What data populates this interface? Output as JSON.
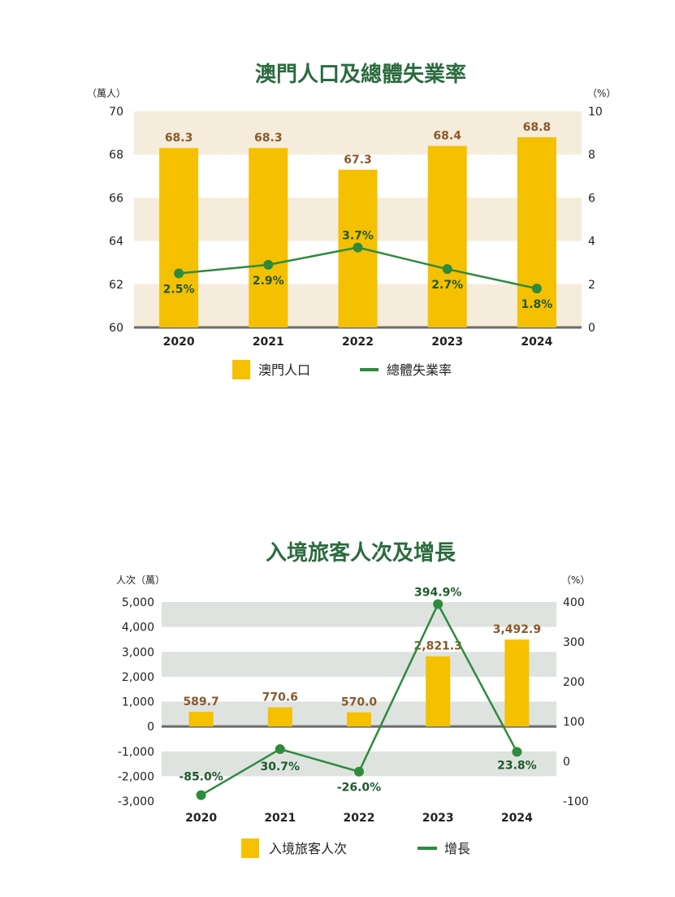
{
  "colors": {
    "bar": "#f5c000",
    "line": "#2e8b3e",
    "title": "#2b6b3f",
    "bar_label": "#8a5a2b",
    "point_label": "#1e5a2e",
    "band1": "#f5ecdb",
    "band2": "#dfe3df",
    "axis": "#6b6b6b"
  },
  "chart_data": [
    {
      "type": "bar",
      "title": "澳門人口及總體失業率",
      "left_unit": "（萬人）",
      "right_unit": "（%）",
      "categories": [
        "2020",
        "2021",
        "2022",
        "2023",
        "2024"
      ],
      "ylim": [
        60,
        70
      ],
      "yticks": [
        "60",
        "62",
        "64",
        "66",
        "68",
        "70"
      ],
      "y2lim": [
        0,
        10
      ],
      "y2ticks": [
        "0",
        "2",
        "4",
        "6",
        "8",
        "10"
      ],
      "series": [
        {
          "name": "澳門人口",
          "type": "bar",
          "axis": "left",
          "values": [
            68.3,
            68.3,
            67.3,
            68.4,
            68.8
          ],
          "labels": [
            "68.3",
            "68.3",
            "67.3",
            "68.4",
            "68.8"
          ]
        },
        {
          "name": "總體失業率",
          "type": "line",
          "axis": "right",
          "values": [
            2.5,
            2.9,
            3.7,
            2.7,
            1.8
          ],
          "labels": [
            "2.5%",
            "2.9%",
            "3.7%",
            "2.7%",
            "1.8%"
          ]
        }
      ],
      "legend_placement": "bottom"
    },
    {
      "type": "bar",
      "title": "入境旅客人次及增長",
      "left_unit": "人次（萬）",
      "right_unit": "（%）",
      "categories": [
        "2020",
        "2021",
        "2022",
        "2023",
        "2024"
      ],
      "ylim": [
        -3000,
        5000
      ],
      "yticks": [
        "-3,000",
        "-2,000",
        "-1,000",
        "0",
        "1,000",
        "2,000",
        "3,000",
        "4,000",
        "5,000"
      ],
      "y2lim": [
        -100,
        400
      ],
      "y2ticks": [
        "-100",
        "0",
        "100",
        "200",
        "300",
        "400"
      ],
      "series": [
        {
          "name": "入境旅客人次",
          "type": "bar",
          "axis": "left",
          "values": [
            589.7,
            770.6,
            570.0,
            2821.3,
            3492.9
          ],
          "labels": [
            "589.7",
            "770.6",
            "570.0",
            "2,821.3",
            "3,492.9"
          ]
        },
        {
          "name": "增長",
          "type": "line",
          "axis": "right",
          "values": [
            -85.0,
            30.7,
            -26.0,
            394.9,
            23.8
          ],
          "labels": [
            "-85.0%",
            "30.7%",
            "-26.0%",
            "394.9%",
            "23.8%"
          ]
        }
      ],
      "legend_placement": "bottom"
    }
  ]
}
